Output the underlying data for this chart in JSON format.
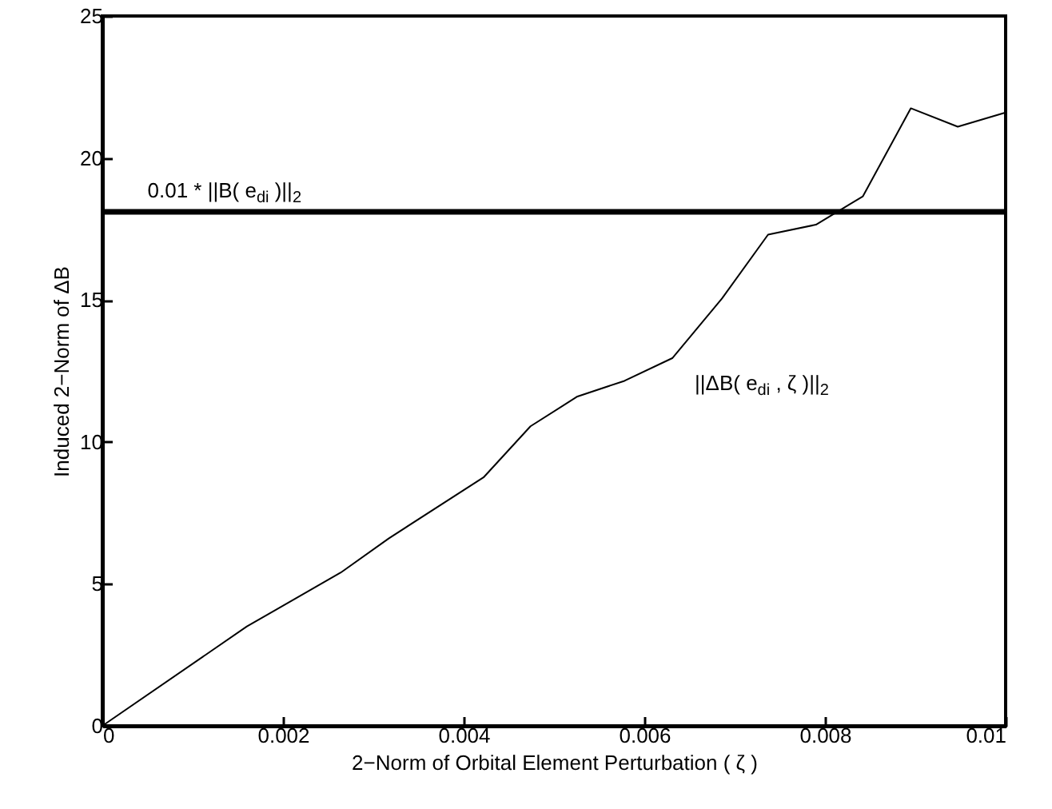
{
  "chart_data": {
    "type": "line",
    "xlabel": "2−Norm of Orbital Element Perturbation ( ζ )",
    "ylabel": "Induced 2−Norm of ΔB",
    "x": [
      0,
      0.0016,
      0.00264,
      0.00317,
      0.00422,
      0.00474,
      0.00526,
      0.00578,
      0.00631,
      0.00686,
      0.00737,
      0.0079,
      0.00842,
      0.00895,
      0.00947,
      0.01
    ],
    "series": [
      {
        "name": "||ΔB( e$_{di}$ , ζ )||$_{2}$",
        "color": "#000000",
        "values": [
          0,
          3.5,
          5.4,
          6.6,
          8.75,
          10.55,
          11.6,
          12.15,
          12.95,
          15.05,
          17.3,
          17.65,
          18.65,
          21.75,
          21.1,
          21.6
        ]
      }
    ],
    "xlim": [
      0,
      0.01
    ],
    "xticks": [
      0,
      0.002,
      0.004,
      0.006,
      0.008,
      0.01
    ],
    "ylim": [
      0,
      25
    ],
    "yticks": [
      0,
      5,
      10,
      15,
      20,
      25
    ],
    "ref_lines": [
      {
        "axis": "y",
        "value": 18.1,
        "label": "0.01 * ||B( e$_{di}$ )||$_{2}$",
        "color": "#000000"
      }
    ],
    "grid": false,
    "legend": false,
    "line_style": "solid",
    "marker": "none"
  }
}
